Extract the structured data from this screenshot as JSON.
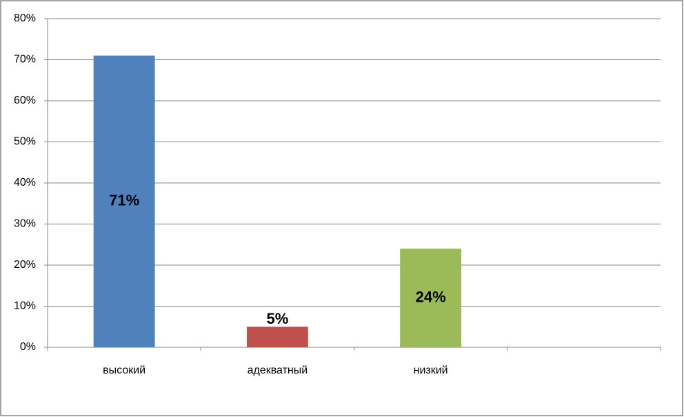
{
  "chart_data": {
    "type": "bar",
    "categories": [
      "высокий",
      "адекватный",
      "низкий",
      null
    ],
    "values": [
      71,
      5,
      24,
      null
    ],
    "value_labels": [
      "71%",
      "5%",
      "24%",
      null
    ],
    "colors": [
      "#4f81bd",
      "#c0504d",
      "#9bbb59",
      null
    ],
    "ylim": [
      0,
      80
    ],
    "yticks": [
      {
        "value": 0,
        "label": "0%"
      },
      {
        "value": 10,
        "label": "10%"
      },
      {
        "value": 20,
        "label": "20%"
      },
      {
        "value": 30,
        "label": "30%"
      },
      {
        "value": 40,
        "label": "40%"
      },
      {
        "value": 50,
        "label": "50%"
      },
      {
        "value": 60,
        "label": "60%"
      },
      {
        "value": 70,
        "label": "70%"
      },
      {
        "value": 80,
        "label": "80%"
      }
    ],
    "grid": true
  }
}
